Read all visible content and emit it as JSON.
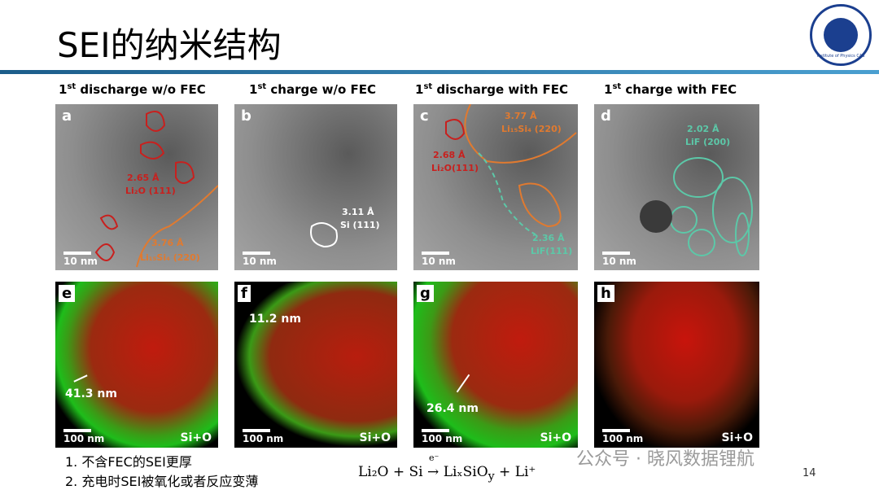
{
  "title": "SEI的纳米结构",
  "logo": {
    "text": "Institute of Physics CAS"
  },
  "columns": [
    {
      "number": "1",
      "sup": "st",
      "text": " discharge w/o FEC"
    },
    {
      "number": "1",
      "sup": "st",
      "text": " charge w/o FEC"
    },
    {
      "number": "1",
      "sup": "st",
      "text": " discharge with FEC"
    },
    {
      "number": "1",
      "sup": "st",
      "text": " charge with FEC"
    }
  ],
  "panels": [
    {
      "letter": "a",
      "scale": "10 nm",
      "labels": [
        "2.65 Å",
        "Li₂O (111)",
        "3.76 Å",
        "Li₁₅Si₄ (220)"
      ]
    },
    {
      "letter": "b",
      "scale": "10 nm",
      "labels": [
        "3.11 Å",
        "Si (111)"
      ]
    },
    {
      "letter": "c",
      "scale": "10 nm",
      "labels": [
        "3.77 Å",
        "Li₁₅Si₄ (220)",
        "2.68 Å",
        "Li₂O(111)",
        "2.36 Å",
        "LiF(111)"
      ]
    },
    {
      "letter": "d",
      "scale": "10 nm",
      "labels": [
        "2.02 Å",
        "LiF (200)"
      ]
    },
    {
      "letter": "e",
      "scale": "100 nm",
      "element": "Si+O",
      "thickness": "41.3 nm"
    },
    {
      "letter": "f",
      "scale": "100 nm",
      "element": "Si+O",
      "thickness": "11.2 nm"
    },
    {
      "letter": "g",
      "scale": "100 nm",
      "element": "Si+O",
      "thickness": "26.4 nm"
    },
    {
      "letter": "h",
      "scale": "100 nm",
      "element": "Si+O"
    }
  ],
  "notes": [
    "1. 不含FEC的SEI更厚",
    "2. 充电时SEI被氧化或者反应变薄"
  ],
  "equation": {
    "lhs": "Li₂O + Si",
    "over": "e⁻",
    "arrow": "→",
    "rhs": "LiₓSiO",
    "rhs_sub": "y",
    "rhs_tail": " + Li⁺"
  },
  "watermark": "公众号 · 晓风数据锂航",
  "page_number": "14"
}
